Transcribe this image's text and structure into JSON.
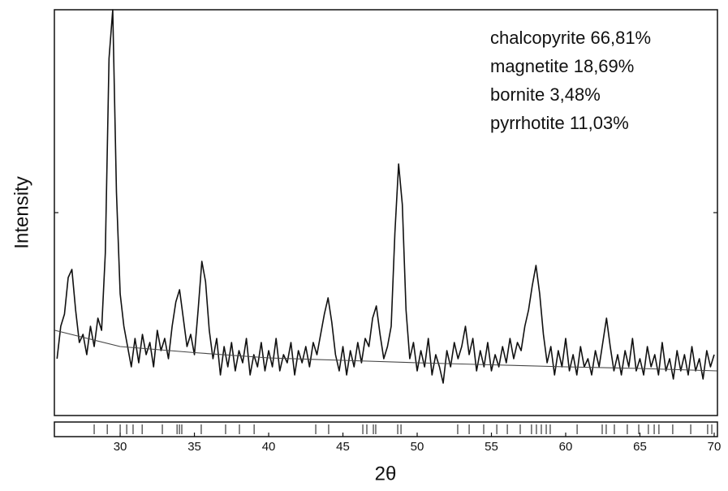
{
  "chart_data": {
    "type": "line",
    "xlabel": "2θ",
    "ylabel": "Intensity",
    "annotations": [
      "chalcopyrite 66,81%",
      "magnetite 18,69%",
      "bornite 3,48%",
      "pyrrhotite 11,03%"
    ],
    "xlim": [
      25.57,
      70.22
    ],
    "ylim": [
      0,
      100
    ],
    "xticks": [
      30,
      35,
      40,
      45,
      50,
      55,
      60,
      65,
      70
    ],
    "yticks": [
      50
    ],
    "series": [
      {
        "color": "#111111",
        "x": [
          25.75,
          26,
          26.25,
          26.5,
          26.75,
          27,
          27.25,
          27.5,
          27.75,
          28,
          28.25,
          28.5,
          28.75,
          29,
          29.25,
          29.5,
          29.75,
          30,
          30.25,
          30.5,
          30.75,
          31,
          31.25,
          31.5,
          31.75,
          32,
          32.25,
          32.5,
          32.75,
          33,
          33.25,
          33.5,
          33.75,
          34,
          34.25,
          34.5,
          34.75,
          35,
          35.25,
          35.5,
          35.75,
          36,
          36.25,
          36.5,
          36.75,
          37,
          37.25,
          37.5,
          37.75,
          38,
          38.25,
          38.5,
          38.75,
          39,
          39.25,
          39.5,
          39.75,
          40,
          40.25,
          40.5,
          40.75,
          41,
          41.25,
          41.5,
          41.75,
          42,
          42.25,
          42.5,
          42.75,
          43,
          43.25,
          43.5,
          43.75,
          44,
          44.25,
          44.5,
          44.75,
          45,
          45.25,
          45.5,
          45.75,
          46,
          46.25,
          46.5,
          46.75,
          47,
          47.25,
          47.5,
          47.75,
          48,
          48.25,
          48.5,
          48.75,
          49,
          49.25,
          49.5,
          49.75,
          50,
          50.25,
          50.5,
          50.75,
          51,
          51.25,
          51.5,
          51.75,
          52,
          52.25,
          52.5,
          52.75,
          53,
          53.25,
          53.5,
          53.75,
          54,
          54.25,
          54.5,
          54.75,
          55,
          55.25,
          55.5,
          55.75,
          56,
          56.25,
          56.5,
          56.75,
          57,
          57.25,
          57.5,
          57.75,
          58,
          58.25,
          58.5,
          58.75,
          59,
          59.25,
          59.5,
          59.75,
          60,
          60.25,
          60.5,
          60.75,
          61,
          61.25,
          61.5,
          61.75,
          62,
          62.25,
          62.5,
          62.75,
          63,
          63.25,
          63.5,
          63.75,
          64,
          64.25,
          64.5,
          64.75,
          65,
          65.25,
          65.5,
          65.75,
          66,
          66.25,
          66.5,
          66.75,
          67,
          67.25,
          67.5,
          67.75,
          68,
          68.25,
          68.5,
          68.75,
          69,
          69.25,
          69.5,
          69.75,
          70
        ],
        "values": [
          14,
          22,
          25,
          34,
          36,
          26,
          18,
          20,
          15,
          22,
          17,
          24,
          21,
          40,
          88,
          100,
          55,
          30,
          22,
          17,
          12,
          19,
          13,
          20,
          15,
          18,
          12,
          21,
          16,
          19,
          14,
          22,
          28,
          31,
          24,
          17,
          20,
          15,
          26,
          38,
          33,
          21,
          14,
          19,
          10,
          17,
          12,
          18,
          11,
          16,
          13,
          19,
          10,
          15,
          12,
          18,
          11,
          16,
          12,
          19,
          11,
          15,
          13,
          18,
          10,
          16,
          13,
          17,
          12,
          18,
          15,
          20,
          25,
          29,
          23,
          15,
          11,
          17,
          10,
          16,
          12,
          18,
          13,
          19,
          17,
          24,
          27,
          20,
          14,
          17,
          22,
          45,
          62,
          52,
          26,
          14,
          18,
          11,
          16,
          12,
          19,
          10,
          15,
          12,
          8,
          16,
          12,
          18,
          14,
          17,
          22,
          15,
          19,
          11,
          16,
          12,
          18,
          11,
          15,
          12,
          17,
          13,
          19,
          14,
          18,
          16,
          22,
          26,
          32,
          37,
          30,
          20,
          13,
          17,
          10,
          16,
          12,
          19,
          11,
          15,
          10,
          17,
          12,
          14,
          10,
          16,
          12,
          18,
          24,
          17,
          11,
          15,
          10,
          16,
          12,
          19,
          11,
          14,
          10,
          17,
          12,
          15,
          10,
          18,
          11,
          14,
          9,
          16,
          11,
          15,
          10,
          17,
          11,
          14,
          9,
          16,
          12,
          15
        ]
      },
      {
        "color": "#444444",
        "x": [
          25.6,
          30,
          35,
          40,
          45,
          50,
          55,
          60,
          65,
          70.2
        ],
        "values": [
          21,
          17,
          15.5,
          14.2,
          13.6,
          13,
          12.5,
          12,
          11.6,
          11
        ]
      }
    ],
    "reflections": [
      28.25,
      29.13,
      30.0,
      30.44,
      30.87,
      31.48,
      32.84,
      33.83,
      33.99,
      34.15,
      35.46,
      37.1,
      38.03,
      39.02,
      43.17,
      44.04,
      46.34,
      46.61,
      47.05,
      47.21,
      48.69,
      48.91,
      52.73,
      53.5,
      54.48,
      55.36,
      56.07,
      56.94,
      57.7,
      58.03,
      58.36,
      58.69,
      58.96,
      60.77,
      62.46,
      62.73,
      63.28,
      64.15,
      64.92,
      65.57,
      65.96,
      66.28,
      67.21,
      68.42,
      69.56,
      69.84
    ]
  }
}
